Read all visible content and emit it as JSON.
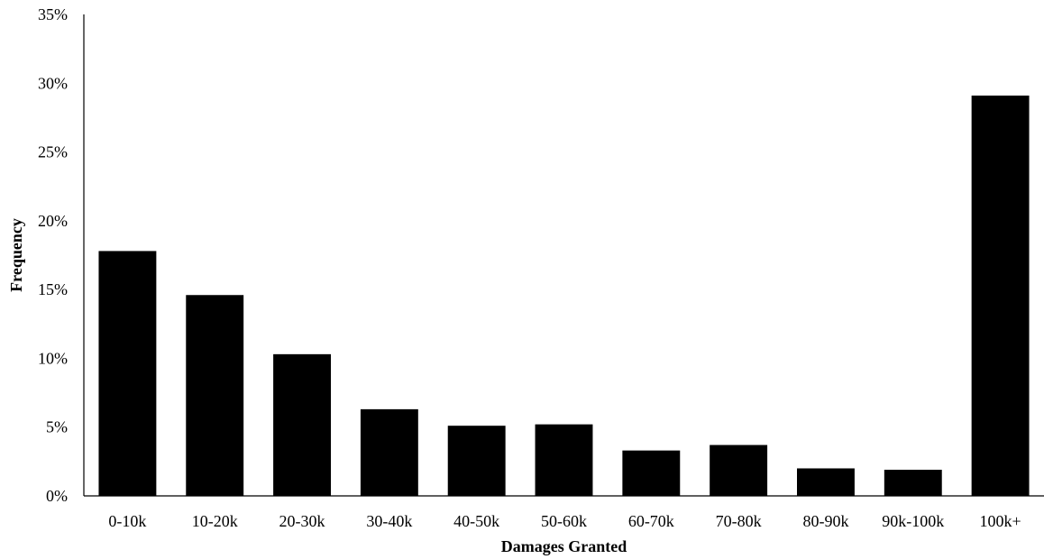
{
  "chart_data": {
    "type": "bar",
    "categories": [
      "0-10k",
      "10-20k",
      "20-30k",
      "30-40k",
      "40-50k",
      "50-60k",
      "60-70k",
      "70-80k",
      "80-90k",
      "90k-100k",
      "100k+"
    ],
    "values": [
      17.8,
      14.6,
      10.3,
      6.3,
      5.1,
      5.2,
      3.3,
      3.7,
      2.0,
      1.9,
      29.1
    ],
    "value_unit": "%",
    "title": "",
    "xlabel": "Damages Granted",
    "ylabel": "Frequency",
    "ylim": [
      0,
      35
    ],
    "yticks": [
      "0%",
      "5%",
      "10%",
      "15%",
      "20%",
      "25%",
      "30%",
      "35%"
    ],
    "grid": false,
    "legend": "none",
    "bar_color": "#000000"
  }
}
